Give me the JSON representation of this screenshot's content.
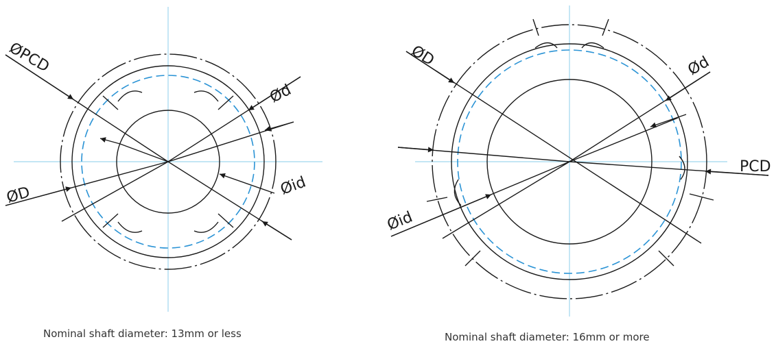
{
  "left_diagram": {
    "caption": "Nominal shaft diameter: 13mm or less",
    "labels": {
      "pcd": "ØPCD",
      "d": "Ød",
      "D": "ØD",
      "id": "Øid"
    }
  },
  "right_diagram": {
    "caption": "Nominal shaft diameter: 16mm or more",
    "labels": {
      "D": "ØD",
      "d": "Ød",
      "pcd": "PCD",
      "id": "Øid"
    }
  },
  "colors": {
    "line": "#1a1a1a",
    "centerline": "#9fd6ee",
    "pitch_circle": "#2a93d5"
  }
}
